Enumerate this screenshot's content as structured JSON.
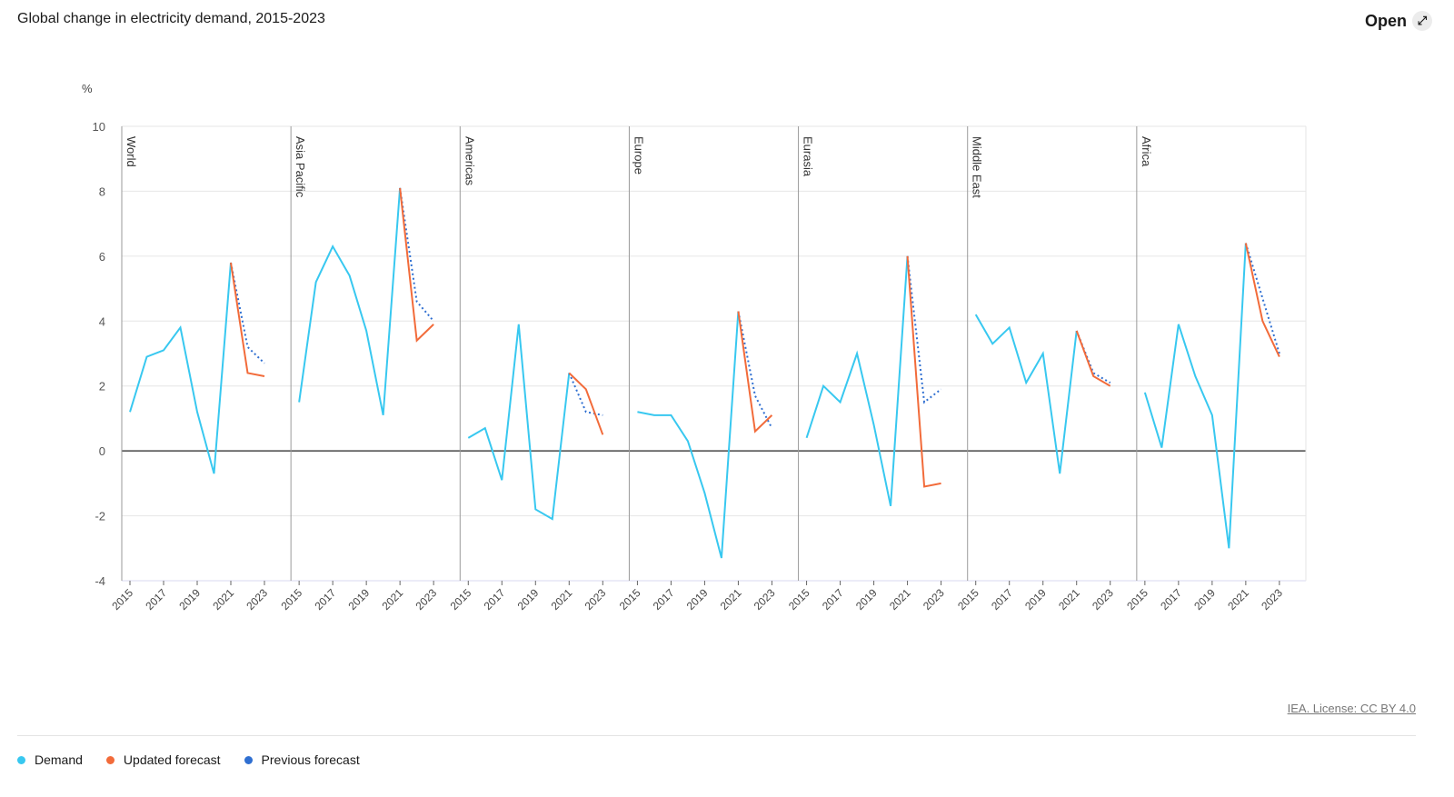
{
  "header": {
    "title": "Global change in electricity demand, 2015-2023",
    "open_label": "Open",
    "open_icon": "expand-icon"
  },
  "footer": {
    "license": "IEA. License: CC BY 4.0"
  },
  "colors": {
    "demand": "#38c8f0",
    "updated": "#f26b3a",
    "previous": "#2f6fd1"
  },
  "chart_data": {
    "type": "line",
    "title": "Global change in electricity demand, 2015-2023",
    "ylabel": "%",
    "ylim": [
      -4,
      10
    ],
    "yticks": [
      -4,
      -2,
      0,
      2,
      4,
      6,
      8,
      10
    ],
    "x": [
      2015,
      2016,
      2017,
      2018,
      2019,
      2020,
      2021,
      2022,
      2023
    ],
    "xtick_labels": [
      "2015",
      "2017",
      "2019",
      "2021",
      "2023"
    ],
    "grid": true,
    "legend": [
      {
        "name": "Demand",
        "color": "#38c8f0"
      },
      {
        "name": "Updated forecast",
        "color": "#f26b3a"
      },
      {
        "name": "Previous forecast",
        "color": "#2f6fd1"
      }
    ],
    "panels": [
      {
        "name": "World",
        "demand": [
          1.2,
          2.9,
          3.1,
          3.8,
          1.2,
          -0.7,
          5.8
        ],
        "updated": [
          5.8,
          2.4,
          2.3
        ],
        "previous": [
          5.8,
          3.2,
          2.7
        ]
      },
      {
        "name": "Asia Pacific",
        "demand": [
          1.5,
          5.2,
          6.3,
          5.4,
          3.7,
          1.1,
          8.1
        ],
        "updated": [
          8.1,
          3.4,
          3.9
        ],
        "previous": [
          8.1,
          4.6,
          4.0
        ]
      },
      {
        "name": "Americas",
        "demand": [
          0.4,
          0.7,
          -0.9,
          3.9,
          -1.8,
          -2.1,
          2.4
        ],
        "updated": [
          2.4,
          1.9,
          0.5
        ],
        "previous": [
          2.4,
          1.2,
          1.1
        ]
      },
      {
        "name": "Europe",
        "demand": [
          1.2,
          1.1,
          1.1,
          0.3,
          -1.3,
          -3.3,
          4.3
        ],
        "updated": [
          4.3,
          0.6,
          1.1
        ],
        "previous": [
          4.3,
          1.7,
          0.7
        ]
      },
      {
        "name": "Eurasia",
        "demand": [
          0.4,
          2.0,
          1.5,
          3.0,
          0.8,
          -1.7,
          6.0
        ],
        "updated": [
          6.0,
          -1.1,
          -1.0
        ],
        "previous": [
          6.0,
          1.5,
          1.9
        ]
      },
      {
        "name": "Middle East",
        "demand": [
          4.2,
          3.3,
          3.8,
          2.1,
          3.0,
          -0.7,
          3.7
        ],
        "updated": [
          3.7,
          2.3,
          2.0
        ],
        "previous": [
          3.7,
          2.4,
          2.1
        ]
      },
      {
        "name": "Africa",
        "demand": [
          1.8,
          0.1,
          3.9,
          2.3,
          1.1,
          -3.0,
          6.4
        ],
        "updated": [
          6.4,
          4.0,
          2.9
        ],
        "previous": [
          6.4,
          4.7,
          3.0
        ]
      }
    ]
  }
}
